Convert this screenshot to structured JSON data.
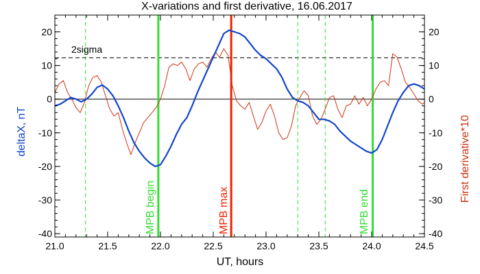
{
  "chart_data": {
    "type": "line",
    "title": "X-variations and first derivative, 16.06.2017",
    "xlabel": "UT, hours",
    "ylabel_left": "deltaX, nT",
    "ylabel_right": "First derivative*10",
    "xlim": [
      21.0,
      24.5
    ],
    "ylim": [
      -41,
      25
    ],
    "x_ticks": [
      "21.0",
      "21.5",
      "22.0",
      "22.5",
      "23.0",
      "23.5",
      "24.0",
      "24.5"
    ],
    "x_tick_values": [
      21.0,
      21.5,
      22.0,
      22.5,
      23.0,
      23.5,
      24.0,
      24.5
    ],
    "y_ticks": [
      "20",
      "10",
      "0",
      "-10",
      "-20",
      "-30",
      "-40"
    ],
    "y_tick_values": [
      20,
      10,
      0,
      -10,
      -20,
      -30,
      -40
    ],
    "grid": false,
    "reference_lines": [
      {
        "label": "2sigma",
        "y": 12.3,
        "style": "dashed",
        "color": "#000000"
      },
      {
        "label": "",
        "y": 0,
        "style": "solid",
        "color": "#000000"
      }
    ],
    "vertical_markers": [
      {
        "label": "MPB begin",
        "x": 21.98,
        "style": "solid",
        "color": "#33dd33"
      },
      {
        "label": "MPB max",
        "x": 22.67,
        "style": "solid",
        "color": "#ee2200"
      },
      {
        "label": "MPB end",
        "x": 24.01,
        "style": "solid",
        "color": "#33dd33"
      },
      {
        "label": "",
        "x": 21.29,
        "style": "dashed",
        "color": "#33dd33"
      },
      {
        "label": "",
        "x": 23.3,
        "style": "dashed",
        "color": "#33dd33"
      },
      {
        "label": "",
        "x": 23.56,
        "style": "dashed",
        "color": "#33dd33"
      }
    ],
    "series": [
      {
        "name": "deltaX, nT",
        "color": "#1144cc",
        "x": [
          21.0,
          21.05,
          21.1,
          21.15,
          21.2,
          21.25,
          21.3,
          21.35,
          21.4,
          21.45,
          21.5,
          21.55,
          21.6,
          21.65,
          21.7,
          21.75,
          21.8,
          21.85,
          21.9,
          21.95,
          22.0,
          22.05,
          22.1,
          22.15,
          22.2,
          22.25,
          22.3,
          22.35,
          22.4,
          22.45,
          22.5,
          22.55,
          22.6,
          22.65,
          22.7,
          22.75,
          22.8,
          22.85,
          22.9,
          22.95,
          23.0,
          23.05,
          23.1,
          23.15,
          23.2,
          23.25,
          23.3,
          23.35,
          23.4,
          23.45,
          23.5,
          23.55,
          23.6,
          23.65,
          23.7,
          23.75,
          23.8,
          23.85,
          23.9,
          23.95,
          24.0,
          24.05,
          24.1,
          24.15,
          24.2,
          24.25,
          24.3,
          24.35,
          24.4,
          24.45,
          24.5
        ],
        "values": [
          -2,
          -1.5,
          -0.5,
          0.5,
          0,
          -0.8,
          0,
          1.5,
          3.5,
          4.2,
          3,
          1,
          -2,
          -5.5,
          -9.5,
          -13,
          -15.5,
          -17.5,
          -19,
          -20,
          -19.5,
          -17,
          -14,
          -10.5,
          -7.5,
          -5.5,
          -2,
          2,
          5.5,
          9,
          12.5,
          16,
          19.5,
          20.5,
          20,
          19.5,
          18.5,
          16.5,
          14.5,
          13,
          12,
          10.5,
          9,
          6.5,
          3,
          0.5,
          -0.5,
          -1,
          -2,
          -4,
          -6,
          -6,
          -6.5,
          -7.5,
          -9.5,
          -11,
          -12.5,
          -13.5,
          -14.5,
          -15.5,
          -16,
          -15,
          -12,
          -8,
          -4,
          -0.5,
          2,
          4,
          4.5,
          4,
          3
        ]
      },
      {
        "name": "First derivative*10",
        "color": "#cc3311",
        "x": [
          21.0,
          21.04,
          21.08,
          21.12,
          21.16,
          21.2,
          21.24,
          21.28,
          21.32,
          21.36,
          21.4,
          21.44,
          21.48,
          21.52,
          21.56,
          21.6,
          21.64,
          21.68,
          21.72,
          21.76,
          21.8,
          21.84,
          21.88,
          21.92,
          21.96,
          22.0,
          22.04,
          22.08,
          22.12,
          22.16,
          22.2,
          22.24,
          22.28,
          22.32,
          22.36,
          22.4,
          22.44,
          22.48,
          22.52,
          22.56,
          22.6,
          22.64,
          22.68,
          22.72,
          22.76,
          22.8,
          22.84,
          22.88,
          22.92,
          22.96,
          23.0,
          23.04,
          23.08,
          23.12,
          23.16,
          23.2,
          23.24,
          23.28,
          23.32,
          23.36,
          23.4,
          23.44,
          23.48,
          23.52,
          23.56,
          23.6,
          23.64,
          23.68,
          23.72,
          23.76,
          23.8,
          23.84,
          23.88,
          23.92,
          23.96,
          24.0,
          24.04,
          24.08,
          24.12,
          24.16,
          24.2,
          24.24,
          24.28,
          24.32,
          24.36,
          24.4,
          24.44,
          24.48,
          24.5
        ],
        "values": [
          2,
          4.5,
          5.5,
          2,
          0,
          -2.5,
          -4,
          -1,
          4,
          6.5,
          7,
          5,
          1,
          -3,
          -5,
          -4,
          -9,
          -13,
          -16.5,
          -13,
          -10,
          -7,
          -5.5,
          -4,
          -2.5,
          0,
          4,
          9.5,
          10.5,
          10,
          11,
          9,
          5.5,
          9,
          10.5,
          11,
          9.5,
          12,
          14,
          12.5,
          15,
          13,
          4,
          -0.5,
          -2,
          -3,
          -1,
          -5,
          -9,
          -7,
          -3.5,
          -1.5,
          -5,
          -10,
          -12,
          -11.5,
          -8,
          -2,
          0.5,
          2.5,
          1,
          -5,
          -7.5,
          -6,
          -3,
          0.5,
          1,
          -3,
          -5.5,
          -2,
          -1.5,
          1,
          -1.5,
          0.5,
          -2,
          0,
          3,
          5,
          5.5,
          4,
          13.5,
          12.5,
          9,
          5,
          3.5,
          1.5,
          -0.5,
          -1.5,
          -1
        ]
      }
    ]
  }
}
